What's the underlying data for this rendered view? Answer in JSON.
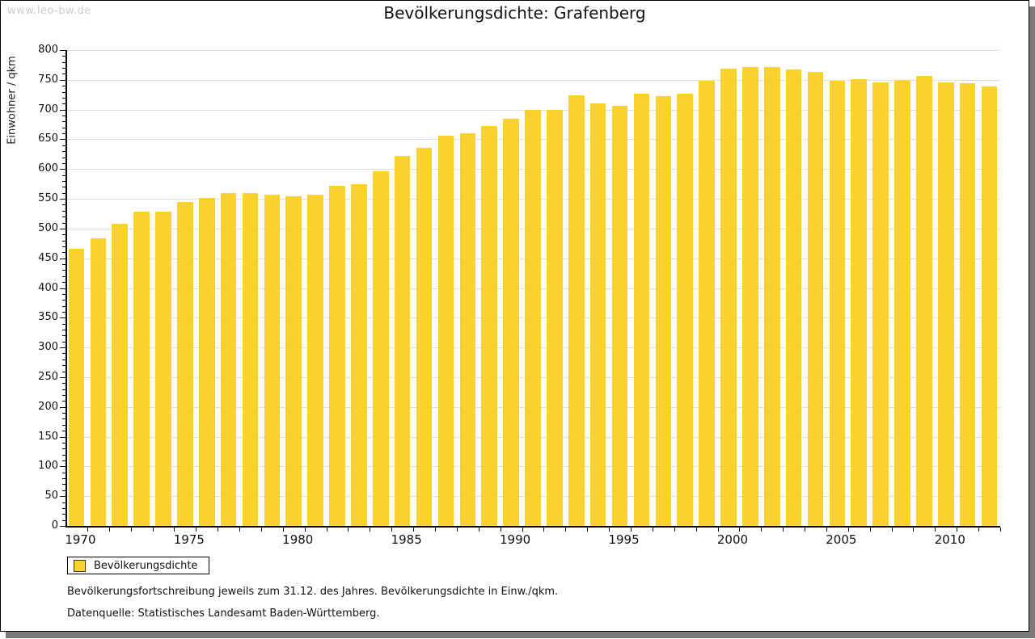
{
  "watermark": "www.leo-bw.de",
  "title": "Bevölkerungsdichte: Grafenberg",
  "legend": {
    "label": "Bevölkerungsdichte",
    "swatch_color": "#f9d32b"
  },
  "footnotes": [
    "Bevölkerungsfortschreibung jeweils zum 31.12. des Jahres. Bevölkerungsdichte in Einw./qkm.",
    "Datenquelle: Statistisches Landesamt Baden-Württemberg."
  ],
  "colors": {
    "bar": "#f9d32b",
    "gridline": "#dddddd",
    "axis": "#000000",
    "text": "#111111",
    "watermark": "#cccccc",
    "frame_shadow": "#7b7b7b"
  },
  "chart_data": {
    "type": "bar",
    "title": "Bevölkerungsdichte: Grafenberg",
    "xlabel": "",
    "ylabel": "Einwohner / qkm",
    "ylim": [
      0,
      800
    ],
    "ytick_major_step": 50,
    "ytick_minor_step": 10,
    "xticks": [
      1970,
      1975,
      1980,
      1985,
      1990,
      1995,
      2000,
      2005,
      2010
    ],
    "grid": true,
    "legend_position": "bottom-left",
    "series_name": "Bevölkerungsdichte",
    "categories": [
      1970,
      1971,
      1972,
      1973,
      1974,
      1975,
      1976,
      1977,
      1978,
      1979,
      1980,
      1981,
      1982,
      1983,
      1984,
      1985,
      1986,
      1987,
      1988,
      1989,
      1990,
      1991,
      1992,
      1993,
      1994,
      1995,
      1996,
      1997,
      1998,
      1999,
      2000,
      2001,
      2002,
      2003,
      2004,
      2005,
      2006,
      2007,
      2008,
      2009,
      2010,
      2011,
      2012
    ],
    "values": [
      466,
      483,
      508,
      529,
      529,
      545,
      551,
      560,
      560,
      557,
      554,
      557,
      572,
      574,
      596,
      622,
      636,
      656,
      660,
      672,
      684,
      700,
      699,
      724,
      711,
      706,
      727,
      722,
      726,
      748,
      769,
      772,
      771,
      768,
      763,
      749,
      751,
      745,
      750,
      757,
      746,
      744,
      739
    ]
  }
}
